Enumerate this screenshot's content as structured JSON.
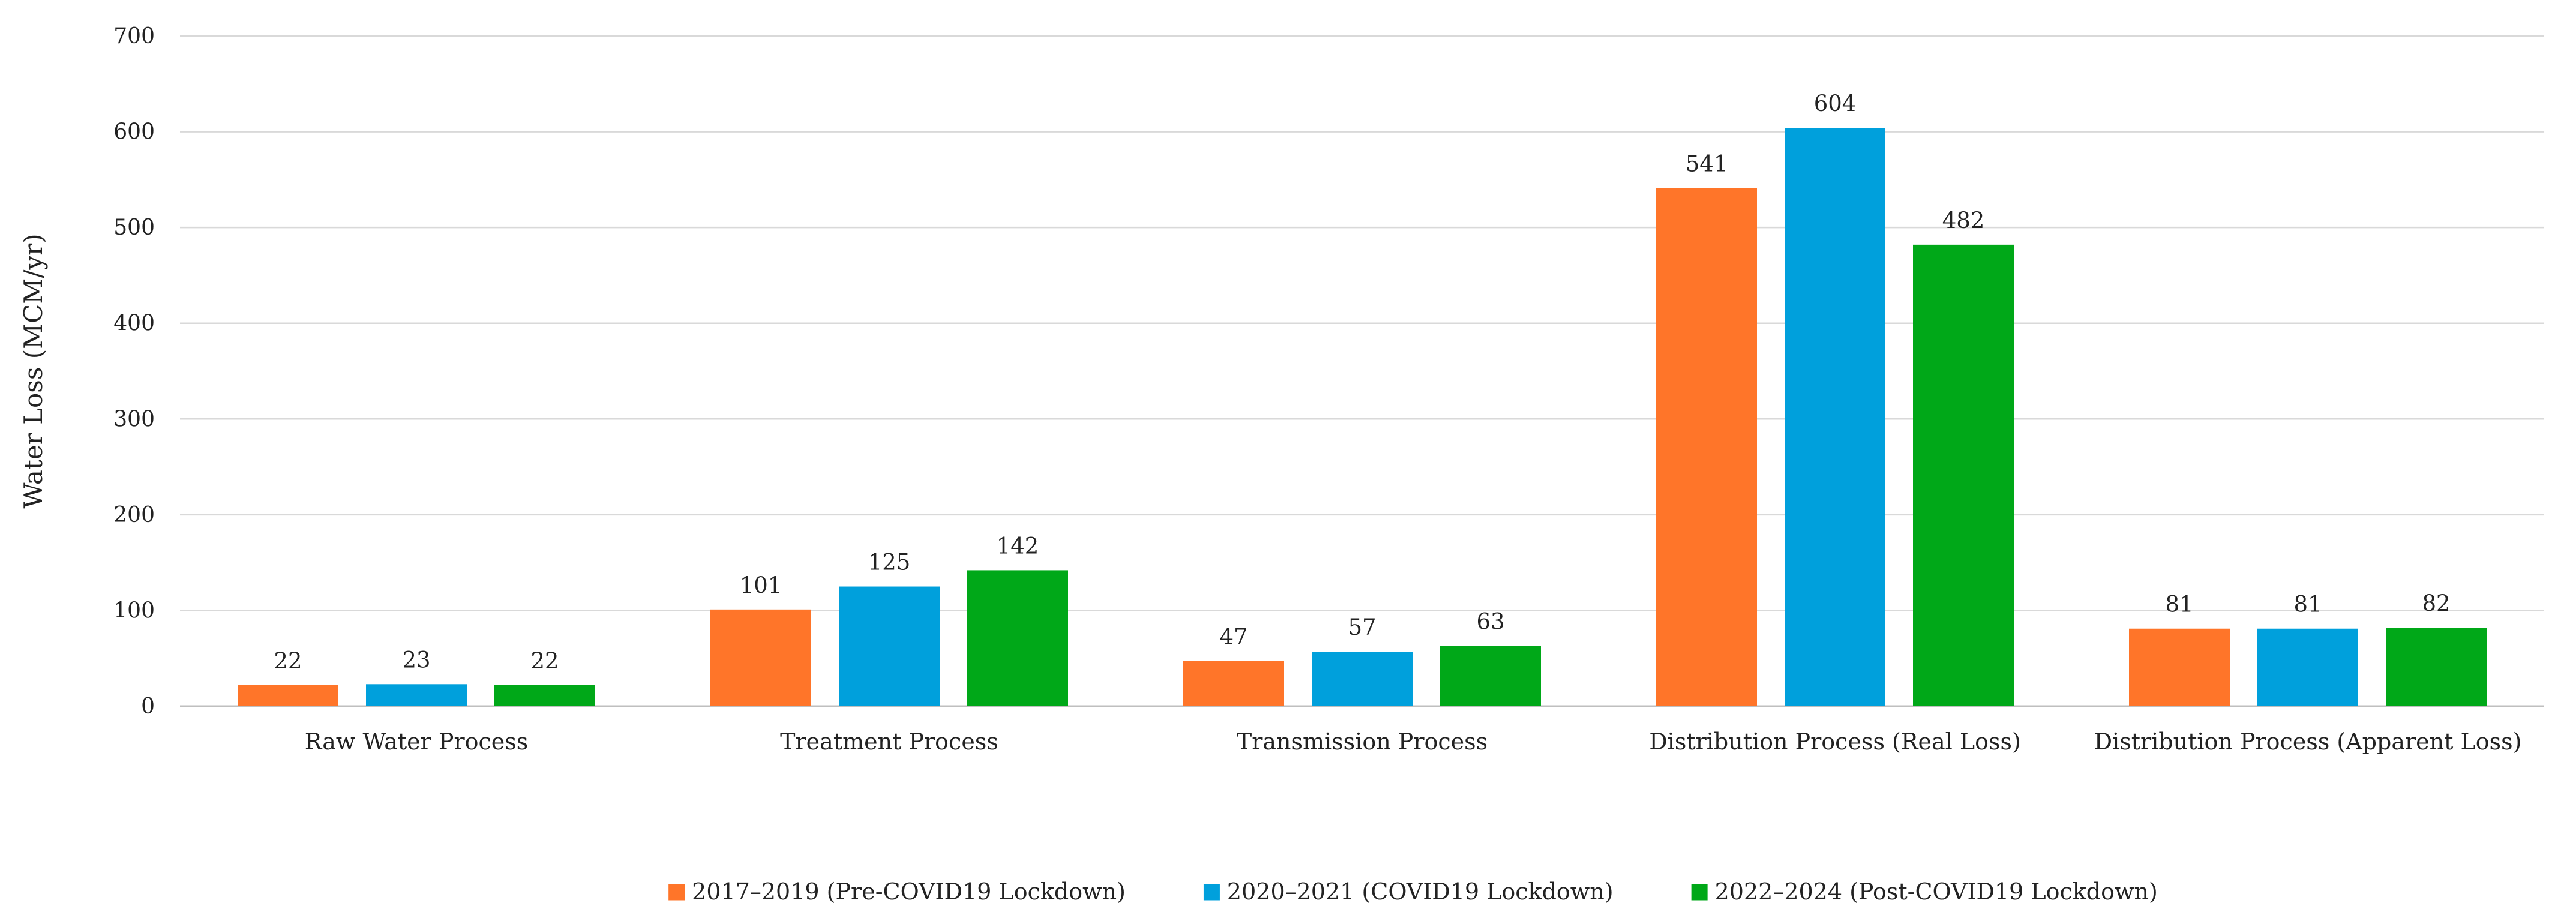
{
  "chart_data": {
    "type": "bar",
    "title": "",
    "xlabel": "",
    "ylabel": "Water Loss  (MCM/yr)",
    "ylim": [
      0,
      700
    ],
    "yticks": [
      0,
      100,
      200,
      300,
      400,
      500,
      600,
      700
    ],
    "grid": true,
    "legend_position": "bottom-center",
    "categories": [
      "Raw Water Process",
      "Treatment Process",
      "Transmission Process",
      "Distribution Process (Real Loss)",
      "Distribution Process  (Apparent Loss)"
    ],
    "series": [
      {
        "name": "2017–2019 (Pre-COVID19 Lockdown)",
        "color": "#FF7529",
        "values": [
          22,
          101,
          47,
          541,
          81
        ]
      },
      {
        "name": "2020–2021  (COVID19 Lockdown)",
        "color": "#00A0DC",
        "values": [
          23,
          125,
          57,
          604,
          81
        ]
      },
      {
        "name": "2022–2024  (Post-COVID19 Lockdown)",
        "color": "#00A818",
        "values": [
          22,
          142,
          63,
          482,
          82
        ]
      }
    ]
  }
}
